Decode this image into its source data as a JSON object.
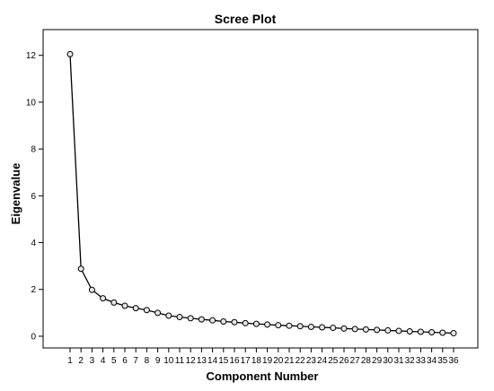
{
  "chart_data": {
    "type": "line",
    "title": "Scree Plot",
    "xlabel": "Component Number",
    "ylabel": "Eigenvalue",
    "x": [
      1,
      2,
      3,
      4,
      5,
      6,
      7,
      8,
      9,
      10,
      11,
      12,
      13,
      14,
      15,
      16,
      17,
      18,
      19,
      20,
      21,
      22,
      23,
      24,
      25,
      26,
      27,
      28,
      29,
      30,
      31,
      32,
      33,
      34,
      35,
      36
    ],
    "values": [
      12.05,
      2.88,
      1.98,
      1.62,
      1.44,
      1.3,
      1.2,
      1.12,
      1.0,
      0.88,
      0.82,
      0.77,
      0.72,
      0.68,
      0.63,
      0.6,
      0.56,
      0.53,
      0.5,
      0.47,
      0.45,
      0.43,
      0.4,
      0.38,
      0.36,
      0.33,
      0.31,
      0.29,
      0.27,
      0.25,
      0.23,
      0.21,
      0.19,
      0.17,
      0.15,
      0.13
    ],
    "yticks": [
      "0",
      "2",
      "4",
      "6",
      "8",
      "10",
      "12"
    ],
    "ylim": [
      -0.5,
      13.1
    ],
    "grid": false,
    "legend": "none"
  }
}
